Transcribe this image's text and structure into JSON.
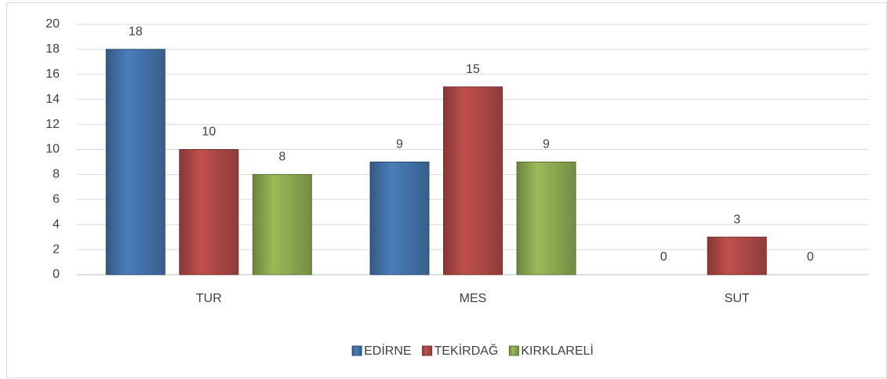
{
  "chart_data": {
    "type": "bar",
    "categories": [
      "TUR",
      "MES",
      "SUT"
    ],
    "series": [
      {
        "name": "EDİRNE",
        "color": "#4a7ebb",
        "values": [
          18,
          9,
          0
        ]
      },
      {
        "name": "TEKİRDAĞ",
        "color": "#c0504d",
        "values": [
          10,
          15,
          3
        ]
      },
      {
        "name": "KIRKLARELİ",
        "color": "#9bbb59",
        "values": [
          8,
          9,
          0
        ]
      }
    ],
    "ylim": [
      0,
      20
    ],
    "yticks": [
      0,
      2,
      4,
      6,
      8,
      10,
      12,
      14,
      16,
      18,
      20
    ],
    "grid": true,
    "legend": "bottom"
  }
}
